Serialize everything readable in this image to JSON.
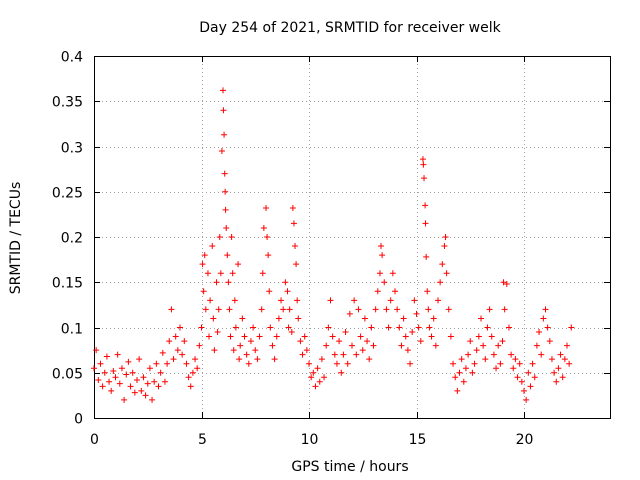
{
  "chart_data": {
    "type": "scatter",
    "title": "Day 254 of 2021, SRMTID for receiver welk",
    "xlabel": "GPS time / hours",
    "ylabel": "SRMTID / TECUs",
    "xlim": [
      0,
      24
    ],
    "ylim": [
      0,
      0.4
    ],
    "xticks": [
      0,
      5,
      10,
      15,
      20
    ],
    "xtick_labels": [
      "0",
      "5",
      "10",
      "15",
      "20"
    ],
    "yticks": [
      0,
      0.05,
      0.1,
      0.15,
      0.2,
      0.25,
      0.3,
      0.35,
      0.4
    ],
    "ytick_labels": [
      "0",
      "0.05",
      "0.1",
      "0.15",
      "0.2",
      "0.25",
      "0.3",
      "0.35",
      "0.4"
    ],
    "grid": true,
    "marker": "+",
    "marker_color": "#ff0000",
    "series": [
      {
        "name": "SRMTID",
        "points": [
          [
            0.0,
            0.055
          ],
          [
            0.1,
            0.075
          ],
          [
            0.2,
            0.042
          ],
          [
            0.3,
            0.06
          ],
          [
            0.4,
            0.035
          ],
          [
            0.5,
            0.05
          ],
          [
            0.6,
            0.068
          ],
          [
            0.7,
            0.04
          ],
          [
            0.8,
            0.03
          ],
          [
            0.9,
            0.052
          ],
          [
            1.0,
            0.045
          ],
          [
            1.1,
            0.07
          ],
          [
            1.2,
            0.038
          ],
          [
            1.3,
            0.055
          ],
          [
            1.4,
            0.02
          ],
          [
            1.5,
            0.048
          ],
          [
            1.6,
            0.062
          ],
          [
            1.7,
            0.035
          ],
          [
            1.8,
            0.05
          ],
          [
            1.9,
            0.028
          ],
          [
            2.0,
            0.042
          ],
          [
            2.1,
            0.065
          ],
          [
            2.2,
            0.03
          ],
          [
            2.3,
            0.045
          ],
          [
            2.4,
            0.025
          ],
          [
            2.5,
            0.038
          ],
          [
            2.6,
            0.055
          ],
          [
            2.7,
            0.02
          ],
          [
            2.8,
            0.04
          ],
          [
            2.9,
            0.06
          ],
          [
            3.0,
            0.035
          ],
          [
            3.1,
            0.05
          ],
          [
            3.2,
            0.072
          ],
          [
            3.3,
            0.04
          ],
          [
            3.4,
            0.06
          ],
          [
            3.5,
            0.085
          ],
          [
            3.6,
            0.12
          ],
          [
            3.7,
            0.065
          ],
          [
            3.8,
            0.09
          ],
          [
            3.9,
            0.075
          ],
          [
            4.0,
            0.1
          ],
          [
            4.1,
            0.07
          ],
          [
            4.2,
            0.085
          ],
          [
            4.3,
            0.06
          ],
          [
            4.4,
            0.045
          ],
          [
            4.5,
            0.035
          ],
          [
            4.6,
            0.05
          ],
          [
            4.7,
            0.065
          ],
          [
            4.8,
            0.055
          ],
          [
            4.9,
            0.08
          ],
          [
            5.0,
            0.1
          ],
          [
            5.05,
            0.17
          ],
          [
            5.1,
            0.14
          ],
          [
            5.15,
            0.18
          ],
          [
            5.2,
            0.12
          ],
          [
            5.3,
            0.16
          ],
          [
            5.35,
            0.09
          ],
          [
            5.4,
            0.13
          ],
          [
            5.5,
            0.19
          ],
          [
            5.55,
            0.11
          ],
          [
            5.6,
            0.075
          ],
          [
            5.7,
            0.15
          ],
          [
            5.75,
            0.095
          ],
          [
            5.8,
            0.12
          ],
          [
            5.85,
            0.2
          ],
          [
            5.9,
            0.16
          ],
          [
            5.95,
            0.295
          ],
          [
            6.0,
            0.362
          ],
          [
            6.02,
            0.34
          ],
          [
            6.05,
            0.313
          ],
          [
            6.08,
            0.27
          ],
          [
            6.1,
            0.25
          ],
          [
            6.12,
            0.23
          ],
          [
            6.15,
            0.21
          ],
          [
            6.2,
            0.18
          ],
          [
            6.25,
            0.15
          ],
          [
            6.3,
            0.12
          ],
          [
            6.35,
            0.09
          ],
          [
            6.4,
            0.2
          ],
          [
            6.45,
            0.16
          ],
          [
            6.5,
            0.075
          ],
          [
            6.55,
            0.13
          ],
          [
            6.6,
            0.1
          ],
          [
            6.7,
            0.17
          ],
          [
            6.75,
            0.065
          ],
          [
            6.8,
            0.08
          ],
          [
            6.9,
            0.11
          ],
          [
            7.0,
            0.09
          ],
          [
            7.1,
            0.07
          ],
          [
            7.2,
            0.06
          ],
          [
            7.3,
            0.085
          ],
          [
            7.4,
            0.1
          ],
          [
            7.5,
            0.075
          ],
          [
            7.6,
            0.065
          ],
          [
            7.7,
            0.09
          ],
          [
            7.8,
            0.12
          ],
          [
            7.85,
            0.16
          ],
          [
            7.9,
            0.21
          ],
          [
            8.0,
            0.232
          ],
          [
            8.05,
            0.2
          ],
          [
            8.1,
            0.18
          ],
          [
            8.15,
            0.14
          ],
          [
            8.2,
            0.1
          ],
          [
            8.3,
            0.08
          ],
          [
            8.4,
            0.065
          ],
          [
            8.5,
            0.09
          ],
          [
            8.6,
            0.11
          ],
          [
            8.7,
            0.13
          ],
          [
            8.8,
            0.12
          ],
          [
            8.9,
            0.15
          ],
          [
            9.0,
            0.14
          ],
          [
            9.05,
            0.1
          ],
          [
            9.1,
            0.12
          ],
          [
            9.2,
            0.095
          ],
          [
            9.25,
            0.232
          ],
          [
            9.3,
            0.215
          ],
          [
            9.35,
            0.19
          ],
          [
            9.4,
            0.17
          ],
          [
            9.45,
            0.13
          ],
          [
            9.5,
            0.11
          ],
          [
            9.6,
            0.085
          ],
          [
            9.7,
            0.07
          ],
          [
            9.8,
            0.09
          ],
          [
            9.9,
            0.075
          ],
          [
            10.0,
            0.06
          ],
          [
            10.1,
            0.045
          ],
          [
            10.2,
            0.05
          ],
          [
            10.3,
            0.035
          ],
          [
            10.4,
            0.055
          ],
          [
            10.5,
            0.04
          ],
          [
            10.6,
            0.065
          ],
          [
            10.7,
            0.045
          ],
          [
            10.8,
            0.08
          ],
          [
            10.9,
            0.1
          ],
          [
            11.0,
            0.13
          ],
          [
            11.1,
            0.09
          ],
          [
            11.2,
            0.07
          ],
          [
            11.3,
            0.06
          ],
          [
            11.4,
            0.085
          ],
          [
            11.5,
            0.05
          ],
          [
            11.6,
            0.07
          ],
          [
            11.7,
            0.095
          ],
          [
            11.8,
            0.06
          ],
          [
            11.9,
            0.115
          ],
          [
            12.0,
            0.08
          ],
          [
            12.1,
            0.13
          ],
          [
            12.2,
            0.07
          ],
          [
            12.3,
            0.12
          ],
          [
            12.4,
            0.09
          ],
          [
            12.5,
            0.075
          ],
          [
            12.6,
            0.11
          ],
          [
            12.7,
            0.085
          ],
          [
            12.8,
            0.065
          ],
          [
            12.9,
            0.1
          ],
          [
            13.0,
            0.08
          ],
          [
            13.1,
            0.12
          ],
          [
            13.2,
            0.14
          ],
          [
            13.3,
            0.16
          ],
          [
            13.35,
            0.19
          ],
          [
            13.4,
            0.18
          ],
          [
            13.5,
            0.15
          ],
          [
            13.6,
            0.12
          ],
          [
            13.7,
            0.1
          ],
          [
            13.8,
            0.13
          ],
          [
            13.9,
            0.16
          ],
          [
            14.0,
            0.14
          ],
          [
            14.1,
            0.12
          ],
          [
            14.2,
            0.1
          ],
          [
            14.3,
            0.08
          ],
          [
            14.4,
            0.11
          ],
          [
            14.5,
            0.09
          ],
          [
            14.6,
            0.075
          ],
          [
            14.7,
            0.06
          ],
          [
            14.8,
            0.095
          ],
          [
            14.9,
            0.13
          ],
          [
            15.0,
            0.115
          ],
          [
            15.1,
            0.1
          ],
          [
            15.2,
            0.085
          ],
          [
            15.3,
            0.286
          ],
          [
            15.32,
            0.28
          ],
          [
            15.35,
            0.265
          ],
          [
            15.4,
            0.235
          ],
          [
            15.42,
            0.215
          ],
          [
            15.45,
            0.178
          ],
          [
            15.5,
            0.14
          ],
          [
            15.55,
            0.12
          ],
          [
            15.6,
            0.1
          ],
          [
            15.7,
            0.09
          ],
          [
            15.8,
            0.11
          ],
          [
            15.9,
            0.08
          ],
          [
            16.0,
            0.13
          ],
          [
            16.1,
            0.15
          ],
          [
            16.2,
            0.17
          ],
          [
            16.3,
            0.19
          ],
          [
            16.35,
            0.2
          ],
          [
            16.4,
            0.16
          ],
          [
            16.5,
            0.12
          ],
          [
            16.6,
            0.09
          ],
          [
            16.7,
            0.06
          ],
          [
            16.8,
            0.045
          ],
          [
            16.9,
            0.03
          ],
          [
            17.0,
            0.05
          ],
          [
            17.1,
            0.065
          ],
          [
            17.2,
            0.04
          ],
          [
            17.3,
            0.055
          ],
          [
            17.4,
            0.07
          ],
          [
            17.5,
            0.085
          ],
          [
            17.6,
            0.05
          ],
          [
            17.7,
            0.06
          ],
          [
            17.8,
            0.075
          ],
          [
            17.9,
            0.09
          ],
          [
            18.0,
            0.11
          ],
          [
            18.1,
            0.08
          ],
          [
            18.2,
            0.065
          ],
          [
            18.3,
            0.1
          ],
          [
            18.4,
            0.12
          ],
          [
            18.5,
            0.09
          ],
          [
            18.6,
            0.07
          ],
          [
            18.7,
            0.055
          ],
          [
            18.8,
            0.08
          ],
          [
            18.9,
            0.06
          ],
          [
            19.0,
            0.085
          ],
          [
            19.05,
            0.15
          ],
          [
            19.1,
            0.12
          ],
          [
            19.2,
            0.148
          ],
          [
            19.3,
            0.1
          ],
          [
            19.4,
            0.07
          ],
          [
            19.5,
            0.055
          ],
          [
            19.6,
            0.065
          ],
          [
            19.7,
            0.045
          ],
          [
            19.8,
            0.06
          ],
          [
            19.9,
            0.04
          ],
          [
            20.0,
            0.03
          ],
          [
            20.1,
            0.02
          ],
          [
            20.2,
            0.05
          ],
          [
            20.3,
            0.035
          ],
          [
            20.4,
            0.06
          ],
          [
            20.5,
            0.045
          ],
          [
            20.6,
            0.08
          ],
          [
            20.7,
            0.095
          ],
          [
            20.8,
            0.07
          ],
          [
            20.9,
            0.11
          ],
          [
            21.0,
            0.12
          ],
          [
            21.1,
            0.1
          ],
          [
            21.2,
            0.085
          ],
          [
            21.3,
            0.065
          ],
          [
            21.4,
            0.05
          ],
          [
            21.5,
            0.04
          ],
          [
            21.6,
            0.055
          ],
          [
            21.7,
            0.07
          ],
          [
            21.8,
            0.045
          ],
          [
            21.9,
            0.065
          ],
          [
            22.0,
            0.08
          ],
          [
            22.1,
            0.06
          ],
          [
            22.2,
            0.1
          ]
        ]
      }
    ]
  }
}
